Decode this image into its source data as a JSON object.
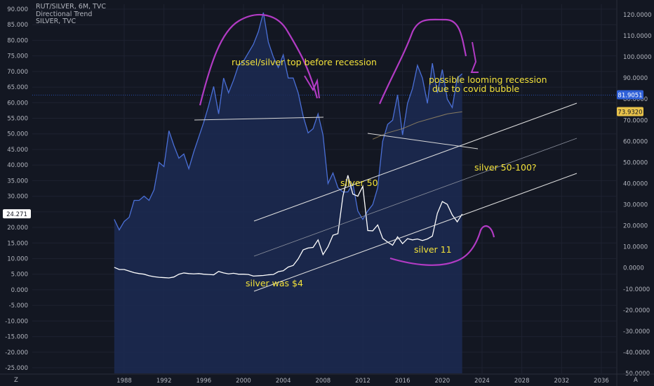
{
  "legend": {
    "line1": "RUT/SILVER, 6M, TVC",
    "line2": "Directional Trend",
    "line3": "SILVER, TVC"
  },
  "colors": {
    "background": "#131722",
    "ratio_line": "#4a6fd6",
    "ratio_fill": "#1c2a52",
    "silver_line": "#ffffff",
    "annotation": "#f3e23a",
    "drawing": "#b23bc4",
    "ratio_badge": "#2f60d8",
    "ma_badge": "#e8c24a"
  },
  "bottom_markers": {
    "left": "Z",
    "right": "A"
  },
  "chart_data": {
    "type": "line",
    "left_axis": {
      "ticks": [
        "90.000",
        "85.000",
        "80.000",
        "75.000",
        "70.000",
        "65.000",
        "60.000",
        "55.000",
        "50.000",
        "45.000",
        "40.000",
        "35.000",
        "30.000",
        "25.000",
        "20.000",
        "15.000",
        "10.000",
        "5.000",
        "0.000",
        "-5.000",
        "-10.000",
        "-15.000",
        "-20.000",
        "-25.000"
      ],
      "ylim": [
        -25,
        90
      ],
      "badge": "24.271"
    },
    "right_axis": {
      "ticks": [
        "120.0000",
        "110.0000",
        "100.0000",
        "90.0000",
        "80.0000",
        "70.0000",
        "60.0000",
        "50.0000",
        "40.0000",
        "30.0000",
        "20.0000",
        "10.0000",
        "0.0000",
        "-10.0000",
        "-20.0000",
        "-30.0000",
        "-40.0000",
        "-50.0000"
      ],
      "ylim": [
        -50,
        122
      ],
      "badges": [
        "81.9051",
        "73.9320"
      ]
    },
    "x_axis": {
      "ticks": [
        "1988",
        "1992",
        "1996",
        "2000",
        "2004",
        "2008",
        "2012",
        "2016",
        "2020",
        "2024",
        "2028",
        "2032",
        "2036"
      ]
    },
    "series": [
      {
        "name": "RUT/SILVER",
        "axis": "right",
        "x": [
          1987.0,
          1987.5,
          1988.0,
          1988.5,
          1989.0,
          1989.5,
          1990.0,
          1990.5,
          1991.0,
          1991.5,
          1992.0,
          1992.5,
          1993.0,
          1993.5,
          1994.0,
          1994.5,
          1995.0,
          1995.5,
          1996.0,
          1996.5,
          1997.0,
          1997.5,
          1998.0,
          1998.5,
          1999.0,
          1999.5,
          2000.0,
          2000.5,
          2001.0,
          2001.5,
          2002.0,
          2002.5,
          2003.0,
          2003.5,
          2004.0,
          2004.5,
          2005.0,
          2005.5,
          2006.0,
          2006.5,
          2007.0,
          2007.5,
          2008.0,
          2008.5,
          2009.0,
          2009.5,
          2010.0,
          2010.5,
          2011.0,
          2011.5,
          2012.0,
          2012.5,
          2013.0,
          2013.5,
          2014.0,
          2014.5,
          2015.0,
          2015.5,
          2016.0,
          2016.5,
          2017.0,
          2017.5,
          2018.0,
          2018.5,
          2019.0,
          2019.5,
          2020.0,
          2020.5,
          2021.0,
          2021.5,
          2022.0
        ],
        "values": [
          23,
          18,
          22,
          24,
          32,
          32,
          34,
          32,
          37,
          50,
          48,
          65,
          58,
          52,
          54,
          47,
          55,
          62,
          69,
          77,
          86,
          73,
          90,
          83,
          89,
          96,
          98,
          102,
          106,
          112,
          121,
          107,
          100,
          95,
          101,
          90,
          90,
          83,
          72,
          64,
          66,
          73,
          63,
          40,
          45,
          38,
          36,
          36,
          40,
          27,
          23,
          27,
          30,
          38,
          60,
          68,
          70,
          82,
          63,
          78,
          85,
          96,
          90,
          78,
          97,
          83,
          94,
          80,
          76,
          90,
          92
        ]
      },
      {
        "name": "SILVER",
        "axis": "left",
        "x": [
          1987.0,
          1987.5,
          1988.0,
          1988.5,
          1989.0,
          1989.5,
          1990.0,
          1990.5,
          1991.0,
          1991.5,
          1992.0,
          1992.5,
          1993.0,
          1993.5,
          1994.0,
          1994.5,
          1995.0,
          1995.5,
          1996.0,
          1996.5,
          1997.0,
          1997.5,
          1998.0,
          1998.5,
          1999.0,
          1999.5,
          2000.0,
          2000.5,
          2001.0,
          2001.5,
          2002.0,
          2002.5,
          2003.0,
          2003.5,
          2004.0,
          2004.5,
          2005.0,
          2005.5,
          2006.0,
          2006.5,
          2007.0,
          2007.5,
          2008.0,
          2008.5,
          2009.0,
          2009.5,
          2010.0,
          2010.5,
          2011.0,
          2011.5,
          2012.0,
          2012.5,
          2013.0,
          2013.5,
          2014.0,
          2014.5,
          2015.0,
          2015.5,
          2016.0,
          2016.5,
          2017.0,
          2017.5,
          2018.0,
          2018.5,
          2019.0,
          2019.5,
          2020.0,
          2020.5,
          2021.0,
          2021.5,
          2022.0
        ],
        "values": [
          7.2,
          6.5,
          6.5,
          6.0,
          5.5,
          5.2,
          5.0,
          4.5,
          4.2,
          4.0,
          3.9,
          3.8,
          4.1,
          5.0,
          5.4,
          5.2,
          5.1,
          5.2,
          5.0,
          4.9,
          4.8,
          5.9,
          5.4,
          5.1,
          5.3,
          5.0,
          5.0,
          4.9,
          4.4,
          4.5,
          4.6,
          4.8,
          4.9,
          5.8,
          6.1,
          7.3,
          7.8,
          9.9,
          12.8,
          13.4,
          13.6,
          16.0,
          11.3,
          13.8,
          17.5,
          18.0,
          30.0,
          36.7,
          30.7,
          30.0,
          33.2,
          19.0,
          18.9,
          20.8,
          16.5,
          15.3,
          14.3,
          17.0,
          14.8,
          16.4,
          16.0,
          16.3,
          15.8,
          16.3,
          17.2,
          24.5,
          28.3,
          27.4,
          24.0,
          21.8,
          24.3
        ]
      },
      {
        "name": "",
        "axis": "right",
        "x": [
          2013.0,
          2014.5,
          2016.0,
          2017.5,
          2019.0,
          2020.5,
          2022.0
        ],
        "values": [
          61,
          64,
          66,
          69,
          71,
          73,
          74
        ]
      }
    ],
    "annotations": [
      {
        "text": "russel/silver top before recession"
      },
      {
        "text": "possible looming recession"
      },
      {
        "text": "due to covid bubble"
      },
      {
        "text": "silver 50"
      },
      {
        "text": "silver 50-100?"
      },
      {
        "text": "silver 11"
      },
      {
        "text": "silver was $4"
      }
    ]
  }
}
